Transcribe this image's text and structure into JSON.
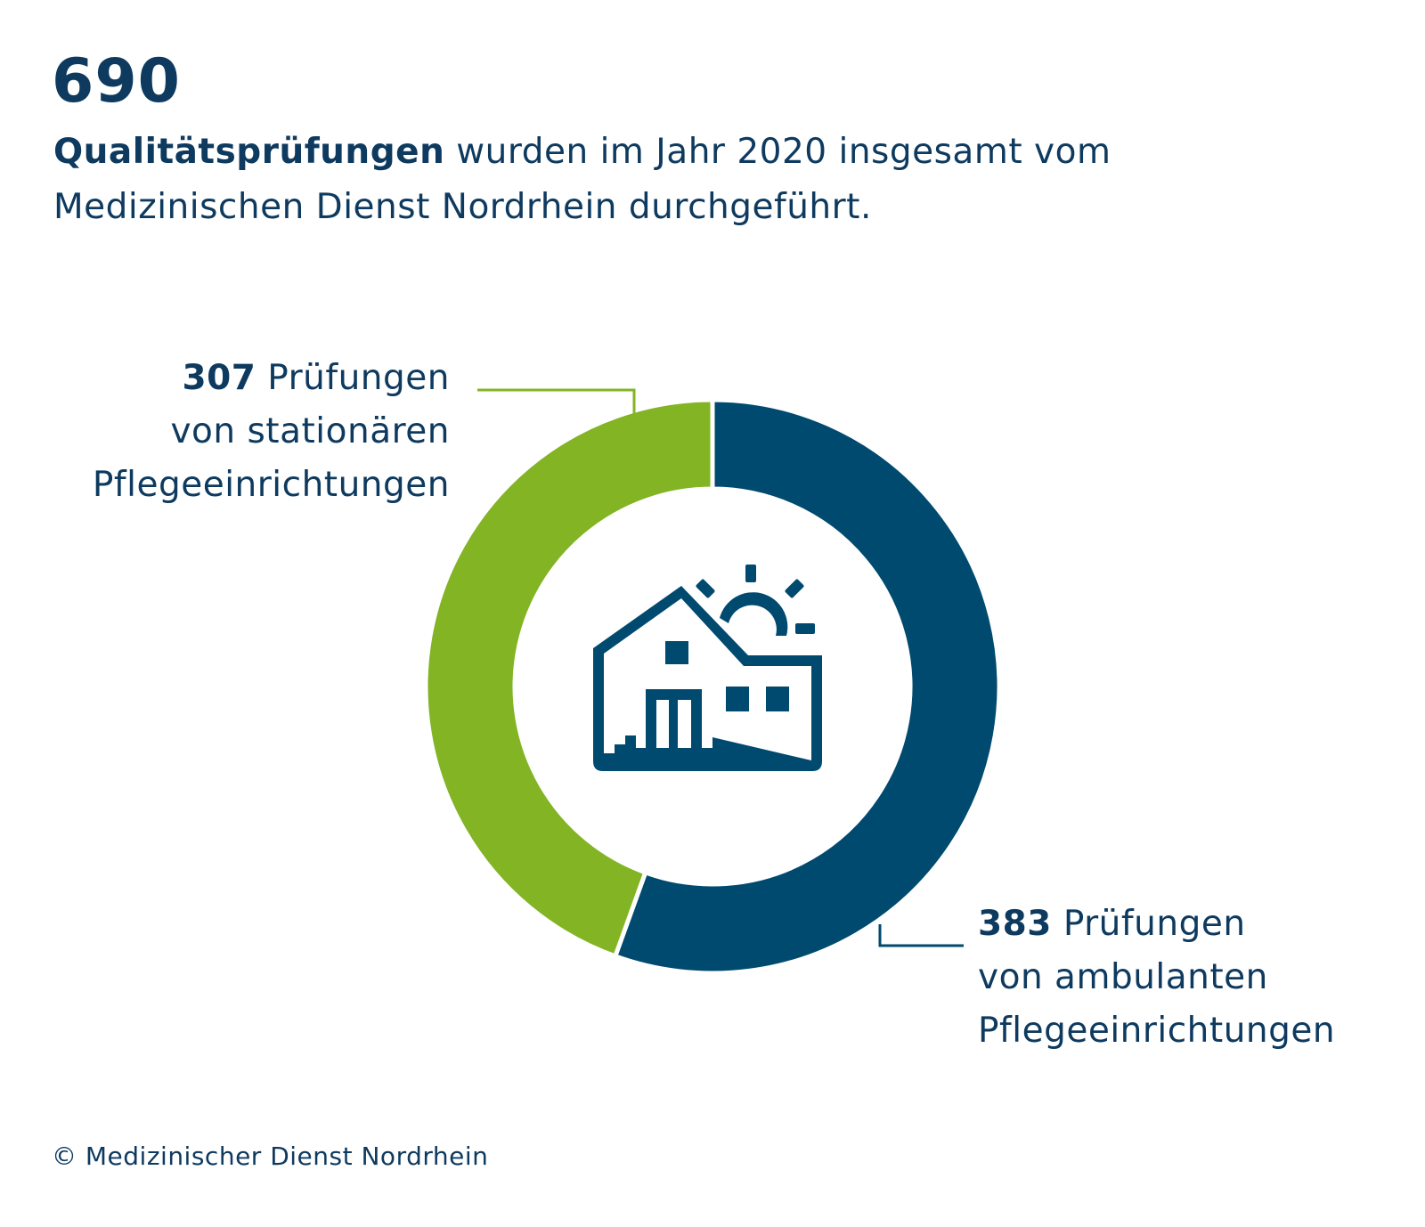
{
  "header": {
    "total": "690",
    "subtitle_bold": "Qualitätsprüfungen",
    "subtitle_rest": " wurden im Jahr 2020 insgesamt vom Medizinischen Dienst Nordrhein durchgeführt."
  },
  "chart_data": {
    "type": "pie",
    "variant": "donut",
    "total": 690,
    "slices": [
      {
        "value": 383,
        "color": "#004a6f",
        "label_value": "383",
        "label_text": " Prüfungen",
        "label_line2": "von ambulanten",
        "label_line3": "Pflegeeinrichtungen"
      },
      {
        "value": 307,
        "color": "#82b424",
        "label_value": "307",
        "label_text": " Prüfungen",
        "label_line2": "von stationären",
        "label_line3": "Pflegeeinrichtungen"
      }
    ],
    "center_icon": "house-with-sun-icon"
  },
  "footer": {
    "copyright": "© Medizinischer Dienst Nordrhein"
  }
}
